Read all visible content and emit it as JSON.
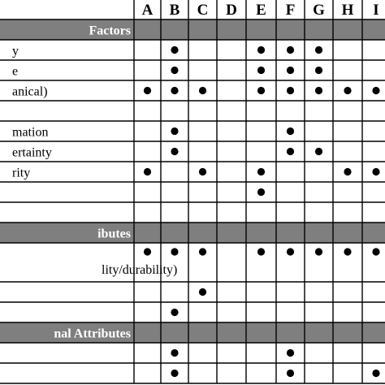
{
  "columns": [
    "A",
    "B",
    "C",
    "D",
    "E",
    "F",
    "G",
    "H",
    "I"
  ],
  "rows": [
    {
      "kind": "section",
      "label": "Factors"
    },
    {
      "kind": "item",
      "label": "y",
      "marks": [
        0,
        1,
        0,
        0,
        1,
        1,
        1,
        0,
        0
      ]
    },
    {
      "kind": "item",
      "label": "e",
      "marks": [
        0,
        1,
        0,
        0,
        1,
        1,
        1,
        0,
        0
      ]
    },
    {
      "kind": "item",
      "label": "anical)",
      "marks": [
        1,
        1,
        1,
        0,
        1,
        1,
        1,
        1,
        1
      ]
    },
    {
      "kind": "item",
      "label": "",
      "marks": [
        0,
        0,
        0,
        0,
        0,
        0,
        0,
        0,
        0
      ]
    },
    {
      "kind": "item",
      "label": "mation",
      "marks": [
        0,
        1,
        0,
        0,
        0,
        1,
        0,
        0,
        0
      ]
    },
    {
      "kind": "item",
      "label": "ertainty",
      "marks": [
        0,
        1,
        0,
        0,
        0,
        1,
        1,
        0,
        0
      ]
    },
    {
      "kind": "item",
      "label": "rity",
      "marks": [
        1,
        0,
        1,
        0,
        1,
        0,
        0,
        1,
        1
      ]
    },
    {
      "kind": "item",
      "label": "",
      "marks": [
        0,
        0,
        0,
        0,
        1,
        0,
        0,
        0,
        0
      ]
    },
    {
      "kind": "item",
      "label": "",
      "marks": [
        0,
        0,
        0,
        0,
        0,
        0,
        0,
        0,
        0
      ]
    },
    {
      "kind": "section",
      "label": "ibutes"
    },
    {
      "kind": "item",
      "label": "lity/durability)",
      "tall": true,
      "marks": [
        1,
        1,
        1,
        0,
        1,
        1,
        1,
        1,
        1
      ]
    },
    {
      "kind": "item",
      "label": "",
      "marks": [
        0,
        0,
        1,
        0,
        0,
        0,
        0,
        0,
        0
      ]
    },
    {
      "kind": "item",
      "label": "",
      "marks": [
        0,
        1,
        0,
        0,
        0,
        0,
        0,
        0,
        0
      ]
    },
    {
      "kind": "section",
      "label": "nal Attributes"
    },
    {
      "kind": "item",
      "label": "",
      "marks": [
        0,
        1,
        0,
        0,
        0,
        1,
        0,
        0,
        0
      ]
    },
    {
      "kind": "item",
      "label": "",
      "marks": [
        0,
        1,
        0,
        0,
        0,
        1,
        0,
        0,
        1
      ]
    }
  ],
  "colors": {
    "section_fill": "#7f7f7f",
    "section_text": "#ffffff",
    "grid": "#000000",
    "mark": "#000000"
  }
}
